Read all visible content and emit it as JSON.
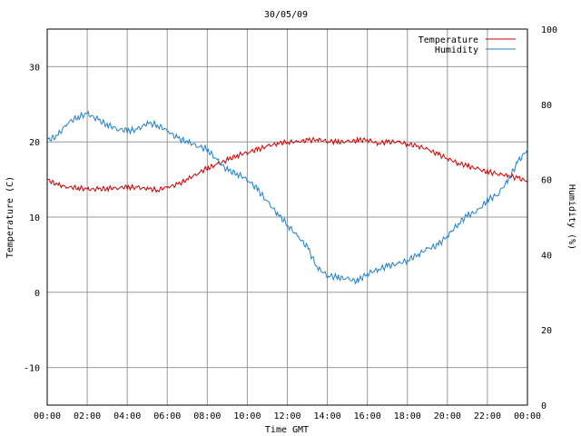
{
  "chart_data": {
    "type": "line",
    "title": "30/05/09",
    "xlabel": "Time GMT",
    "ylabel": "Temperature (C)",
    "y2label": "Humidity (%)",
    "x_ticks": [
      "00:00",
      "02:00",
      "04:00",
      "06:00",
      "08:00",
      "10:00",
      "12:00",
      "14:00",
      "16:00",
      "18:00",
      "20:00",
      "22:00",
      "00:00"
    ],
    "x_range_hours": [
      0,
      24
    ],
    "ylim": [
      -15,
      35
    ],
    "y_ticks": [
      -10,
      0,
      10,
      20,
      30
    ],
    "y2lim": [
      0,
      100
    ],
    "y2_ticks": [
      0,
      20,
      40,
      60,
      80,
      100
    ],
    "grid": true,
    "legend_position": "top-right",
    "series": [
      {
        "name": "Temperature",
        "axis": "left",
        "color": "#cc0000",
        "x_hours": [
          0,
          0.5,
          1,
          1.5,
          2,
          2.5,
          3,
          3.5,
          4,
          4.5,
          5,
          5.5,
          6,
          6.5,
          7,
          7.5,
          8,
          8.5,
          9,
          9.5,
          10,
          10.5,
          11,
          11.5,
          12,
          12.5,
          13,
          13.5,
          14,
          14.5,
          15,
          15.5,
          16,
          16.5,
          17,
          17.5,
          18,
          18.5,
          19,
          19.5,
          20,
          20.5,
          21,
          21.5,
          22,
          22.5,
          23,
          23.5,
          24
        ],
        "values": [
          15.0,
          14.3,
          14.0,
          13.9,
          13.7,
          13.7,
          13.8,
          13.9,
          14.0,
          13.9,
          13.8,
          13.6,
          14.0,
          14.3,
          15.0,
          15.8,
          16.5,
          17.0,
          17.6,
          18.2,
          18.6,
          19.0,
          19.4,
          19.8,
          20.0,
          20.0,
          20.2,
          20.3,
          20.1,
          20.0,
          20.0,
          20.2,
          20.3,
          19.8,
          20.0,
          20.0,
          19.7,
          19.5,
          19.0,
          18.4,
          17.8,
          17.2,
          16.8,
          16.4,
          16.0,
          15.8,
          15.5,
          15.2,
          14.8
        ]
      },
      {
        "name": "Humidity",
        "axis": "right",
        "color": "#1f7fcc",
        "x_hours": [
          0,
          0.5,
          1,
          1.5,
          2,
          2.5,
          3,
          3.5,
          4,
          4.5,
          5,
          5.5,
          6,
          6.5,
          7,
          7.5,
          8,
          8.5,
          9,
          9.5,
          10,
          10.5,
          11,
          11.5,
          12,
          12.5,
          13,
          13.5,
          14,
          14.5,
          15,
          15.5,
          16,
          16.5,
          17,
          17.5,
          18,
          18.5,
          19,
          19.5,
          20,
          20.5,
          21,
          21.5,
          22,
          22.5,
          23,
          23.5,
          24
        ],
        "values": [
          70.5,
          71.5,
          75.0,
          76.5,
          77.5,
          76.0,
          74.5,
          73.5,
          73.0,
          73.2,
          75.0,
          74.5,
          73.0,
          71.0,
          70.0,
          69.0,
          68.0,
          65.0,
          62.5,
          61.5,
          60.0,
          57.5,
          54.0,
          51.0,
          48.0,
          45.0,
          42.0,
          36.5,
          34.5,
          34.0,
          33.5,
          33.0,
          35.0,
          36.0,
          37.0,
          37.5,
          38.5,
          40.0,
          41.5,
          42.5,
          45.0,
          48.0,
          50.5,
          51.5,
          54.5,
          56.0,
          59.5,
          64.5,
          68.0
        ]
      }
    ]
  }
}
